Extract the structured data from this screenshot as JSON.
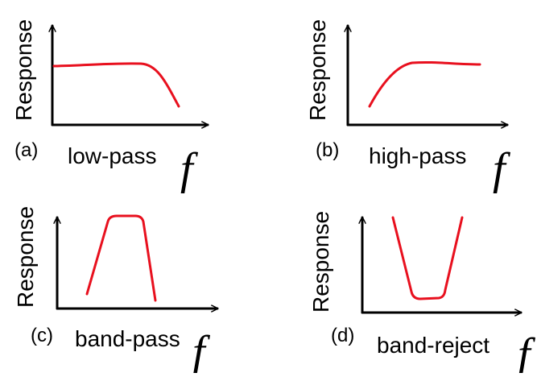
{
  "y_axis_label": "Response",
  "x_axis_symbol": "f",
  "curve_color": "#e8101e",
  "axis_color": "#000000",
  "panels": [
    {
      "tag": "(a)",
      "caption": "low-pass"
    },
    {
      "tag": "(b)",
      "caption": "high-pass"
    },
    {
      "tag": "(c)",
      "caption": "band-pass"
    },
    {
      "tag": "(d)",
      "caption": "band-reject"
    }
  ]
}
